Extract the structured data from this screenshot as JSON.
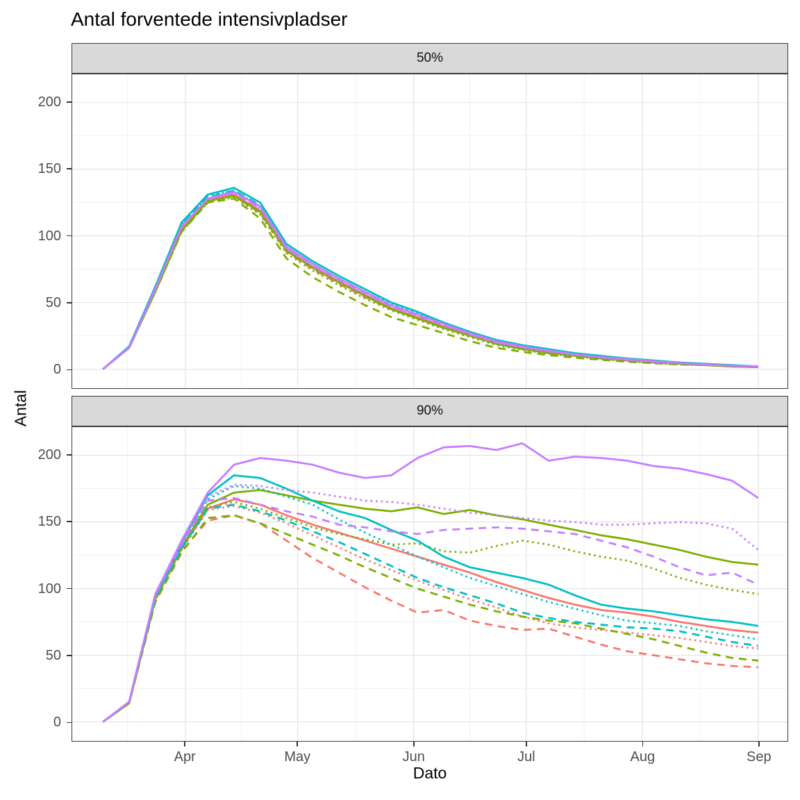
{
  "title": "Antal forventede intensivpladser",
  "chart_data": {
    "type": "line",
    "title": "Antal forventede intensivpladser",
    "xlabel": "Dato",
    "ylabel": "Antal",
    "facets": [
      "50%",
      "90%"
    ],
    "legend": "none",
    "grid": true,
    "x_unit": "days relative to Apr 1 (data span ~Mar 10 to Sep 1)",
    "xlim": [
      -30.2,
      160.8
    ],
    "ylim": [
      -14.3,
      221.2
    ],
    "x": [
      -22,
      -15,
      -8,
      -1,
      6,
      13,
      20,
      27,
      34,
      41,
      48,
      55,
      62,
      69,
      76,
      83,
      90,
      97,
      104,
      111,
      118,
      125,
      132,
      139,
      146,
      153
    ],
    "x_ticks": {
      "labels": [
        "Apr",
        "May",
        "Jun",
        "Jul",
        "Aug",
        "Sep"
      ],
      "t": [
        0,
        30,
        61,
        91,
        122,
        153
      ],
      "minor_t": [
        -15.5,
        15,
        45.5,
        76,
        106.5,
        137.5
      ]
    },
    "y_ticks": {
      "major": [
        0,
        50,
        100,
        150,
        200
      ],
      "minor": [
        25,
        75,
        125,
        175
      ]
    },
    "colors": {
      "salmon": "#F8766D",
      "green": "#7CAE00",
      "teal": "#00BFC4",
      "purple": "#C77CFF",
      "grid_major": "#E3E3E3",
      "grid_minor": "#F1F1F1",
      "strip_bg": "#D9D9D9",
      "axis_text": "#4D4D4D",
      "panel_border": "#3a3a3a"
    },
    "panels": [
      {
        "label": "50%",
        "series": [
          {
            "name": "salmon-solid",
            "color": "#F8766D",
            "linetype": "solid",
            "values": [
              0,
              16,
              59,
              105,
              127,
              131,
              119,
              90,
              77,
              66,
              56,
              46,
              39,
              32,
              26,
              20,
              16,
              13,
              10.5,
              8.5,
              7,
              5.5,
              4,
              3,
              2.5,
              1.5
            ]
          },
          {
            "name": "salmon-dashed",
            "color": "#F8766D",
            "linetype": "dashed",
            "values": [
              0,
              16,
              59,
              104,
              126,
              130,
              117,
              88,
              75,
              64,
              54,
              45,
              38,
              31,
              25,
              19,
              15.5,
              12.5,
              10,
              8,
              6.5,
              5,
              4,
              3,
              2,
              1.5
            ]
          },
          {
            "name": "salmon-dotted",
            "color": "#F8766D",
            "linetype": "dotted",
            "values": [
              0,
              16,
              59,
              105,
              126,
              130,
              118,
              89,
              76,
              65,
              55,
              46,
              39,
              32,
              25,
              19,
              15.5,
              12.5,
              10,
              8,
              6.5,
              5,
              4,
              3,
              2,
              1.5
            ]
          },
          {
            "name": "green-solid",
            "color": "#7CAE00",
            "linetype": "solid",
            "values": [
              0,
              16,
              58,
              104,
              126,
              130,
              118,
              89,
              76,
              65,
              55,
              45,
              38,
              31,
              25,
              19,
              15,
              12,
              10,
              8,
              6.5,
              5,
              4,
              3,
              2,
              1.5
            ]
          },
          {
            "name": "green-dashed",
            "color": "#7CAE00",
            "linetype": "dashed",
            "values": [
              0,
              16,
              58,
              103,
              125,
              128,
              113,
              83,
              69,
              58,
              48,
              39,
              33,
              27,
              21,
              16,
              13,
              10.5,
              8.5,
              7,
              5.5,
              4.5,
              3.5,
              3,
              2,
              1.5
            ]
          },
          {
            "name": "green-dotted",
            "color": "#7CAE00",
            "linetype": "dotted",
            "values": [
              0,
              16,
              58,
              103,
              125,
              129,
              116,
              87,
              74,
              63,
              53,
              44,
              37,
              30,
              24,
              18,
              14.5,
              11.5,
              9.5,
              7.5,
              6,
              4.5,
              3.5,
              3,
              2,
              1.5
            ]
          },
          {
            "name": "teal-solid",
            "color": "#00BFC4",
            "linetype": "solid",
            "values": [
              0,
              17,
              62,
              110,
              131,
              136,
              125,
              94,
              81,
              70,
              60,
              50,
              43,
              35,
              28,
              22,
              18,
              15,
              12,
              10,
              8,
              6.5,
              5,
              4,
              3,
              2
            ]
          },
          {
            "name": "teal-dashed",
            "color": "#00BFC4",
            "linetype": "dashed",
            "values": [
              0,
              17,
              61,
              108,
              129,
              134,
              123,
              92,
              79,
              68,
              58,
              48,
              41,
              34,
              27,
              21,
              17,
              14,
              11.5,
              9.5,
              7.5,
              6,
              4.5,
              3.5,
              2.5,
              2
            ]
          },
          {
            "name": "teal-dotted",
            "color": "#00BFC4",
            "linetype": "dotted",
            "values": [
              0,
              17,
              61,
              109,
              130,
              134,
              122,
              92,
              79,
              68,
              58,
              49,
              42,
              34,
              27,
              21,
              17,
              14,
              11.5,
              9.5,
              7.5,
              6,
              4.5,
              3.5,
              2.5,
              2
            ]
          },
          {
            "name": "purple-solid",
            "color": "#C77CFF",
            "linetype": "solid",
            "values": [
              0,
              16,
              60,
              107,
              128,
              133,
              122,
              92,
              79,
              68,
              58,
              48,
              41,
              34,
              27,
              21,
              17,
              14,
              11,
              9,
              7.5,
              6,
              4.5,
              3.5,
              2.5,
              2
            ]
          },
          {
            "name": "purple-dashed",
            "color": "#C77CFF",
            "linetype": "dashed",
            "values": [
              0,
              16,
              60,
              107,
              128,
              132,
              121,
              91,
              78,
              67,
              57,
              47,
              40,
              33,
              26,
              20,
              16.5,
              13.5,
              11,
              9,
              7,
              5.5,
              4.5,
              3.5,
              2.5,
              2
            ]
          },
          {
            "name": "purple-dotted",
            "color": "#C77CFF",
            "linetype": "dotted",
            "values": [
              0,
              16,
              60,
              106,
              127,
              132,
              120,
              90,
              77,
              66,
              56,
              47,
              40,
              33,
              26,
              20,
              16,
              13,
              10.5,
              8.5,
              7,
              5.5,
              4.5,
              3.5,
              2.5,
              2
            ]
          }
        ]
      },
      {
        "label": "90%",
        "series": [
          {
            "name": "salmon-solid",
            "color": "#F8766D",
            "linetype": "solid",
            "values": [
              0,
              14,
              92,
              130,
              160,
              167,
              163,
              155,
              148,
              142,
              136,
              130,
              124,
              118,
              112,
              105,
              99,
              93,
              88,
              84,
              82,
              79,
              75,
              72,
              69,
              67
            ]
          },
          {
            "name": "salmon-dashed",
            "color": "#F8766D",
            "linetype": "dashed",
            "values": [
              0,
              14,
              90,
              128,
              151,
              155,
              149,
              136,
              123,
              112,
              101,
              91,
              82,
              84,
              76,
              72,
              69,
              70,
              64,
              58,
              53,
              50,
              47,
              44,
              42,
              41
            ]
          },
          {
            "name": "salmon-dotted",
            "color": "#F8766D",
            "linetype": "dotted",
            "values": [
              0,
              14,
              91,
              129,
              159,
              162,
              157,
              149,
              140,
              131,
              122,
              114,
              106,
              99,
              92,
              86,
              79,
              74,
              71,
              69,
              67,
              65,
              63,
              60,
              57,
              55
            ]
          },
          {
            "name": "green-solid",
            "color": "#7CAE00",
            "linetype": "solid",
            "values": [
              0,
              14,
              93,
              131,
              163,
              172,
              174,
              170,
              166,
              163,
              160,
              158,
              161,
              156,
              159,
              155,
              152,
              148,
              144,
              140,
              137,
              133,
              129,
              124,
              120,
              118
            ]
          },
          {
            "name": "green-dashed",
            "color": "#7CAE00",
            "linetype": "dashed",
            "values": [
              0,
              14,
              90,
              127,
              153,
              155,
              149,
              141,
              133,
              125,
              116,
              108,
              100,
              94,
              88,
              83,
              79,
              76,
              74,
              70,
              66,
              62,
              57,
              52,
              48,
              46
            ]
          },
          {
            "name": "green-dotted",
            "color": "#7CAE00",
            "linetype": "dotted",
            "values": [
              0,
              14,
              92,
              130,
              161,
              165,
              160,
              153,
              146,
              141,
              137,
              133,
              134,
              128,
              127,
              132,
              136,
              133,
              128,
              124,
              121,
              115,
              108,
              103,
              99,
              96
            ]
          },
          {
            "name": "teal-solid",
            "color": "#00BFC4",
            "linetype": "solid",
            "values": [
              0,
              15,
              95,
              134,
              170,
              185,
              183,
              175,
              166,
              158,
              153,
              144,
              136,
              124,
              116,
              112,
              108,
              103,
              95,
              88,
              85,
              83,
              80,
              77,
              75,
              72
            ]
          },
          {
            "name": "teal-dashed",
            "color": "#00BFC4",
            "linetype": "dashed",
            "values": [
              0,
              15,
              93,
              130,
              160,
              163,
              158,
              151,
              143,
              135,
              126,
              117,
              108,
              101,
              95,
              89,
              82,
              78,
              75,
              73,
              71,
              70,
              68,
              64,
              60,
              57
            ]
          },
          {
            "name": "teal-dotted",
            "color": "#00BFC4",
            "linetype": "dotted",
            "values": [
              0,
              15,
              94,
              132,
              167,
              177,
              175,
              169,
              163,
              152,
              142,
              133,
              124,
              116,
              108,
              102,
              96,
              90,
              85,
              80,
              76,
              74,
              72,
              68,
              65,
              62
            ]
          },
          {
            "name": "purple-solid",
            "color": "#C77CFF",
            "linetype": "solid",
            "values": [
              0,
              15,
              96,
              136,
              172,
              193,
              198,
              196,
              193,
              187,
              183,
              185,
              198,
              206,
              207,
              204,
              209,
              196,
              199,
              198,
              196,
              192,
              190,
              186,
              181,
              168
            ]
          },
          {
            "name": "purple-dashed",
            "color": "#C77CFF",
            "linetype": "dashed",
            "values": [
              0,
              15,
              95,
              133,
              166,
              168,
              163,
              158,
              154,
              148,
              146,
              143,
              141,
              144,
              145,
              146,
              145,
              143,
              141,
              136,
              131,
              124,
              116,
              110,
              112,
              103
            ]
          },
          {
            "name": "purple-dotted",
            "color": "#C77CFF",
            "linetype": "dotted",
            "values": [
              0,
              15,
              95,
              134,
              169,
              178,
              177,
              174,
              172,
              169,
              166,
              165,
              163,
              160,
              157,
              155,
              153,
              151,
              150,
              148,
              148,
              149,
              150,
              149,
              145,
              129
            ]
          }
        ]
      }
    ]
  }
}
